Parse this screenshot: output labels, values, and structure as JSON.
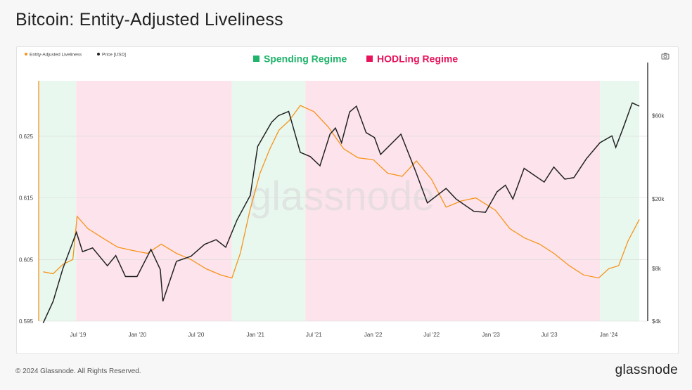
{
  "title": "Bitcoin: Entity-Adjusted Liveliness",
  "footer": {
    "copyright": "© 2024 Glassnode. All Rights Reserved.",
    "logo": "glassnode"
  },
  "watermark": "glassnode",
  "camera_icon": "camera-icon",
  "colors": {
    "spending": "#20b36b",
    "hodling": "#e8135a",
    "spending_fill": "#e8f8ef",
    "hodling_fill": "#fde4ec",
    "liveliness": "#f7931a",
    "price": "#222222"
  },
  "chart_data": {
    "type": "line",
    "x_axis": {
      "ticks": [
        "Jul '19",
        "Jan '20",
        "Jul '20",
        "Jan '21",
        "Jul '21",
        "Jan '22",
        "Jul '22",
        "Jan '23",
        "Jul '23",
        "Jan '24"
      ],
      "range": [
        "2019-03",
        "2024-05"
      ]
    },
    "y_left": {
      "ticks": [
        "0.595",
        "0.605",
        "0.615",
        "0.625"
      ],
      "range": [
        0.595,
        0.634
      ]
    },
    "y_right": {
      "scale": "log",
      "ticks": [
        "$4k",
        "$8k",
        "$20k",
        "$60k"
      ],
      "range": [
        4000,
        95000
      ]
    },
    "legend": [
      {
        "name": "Entity-Adjusted Liveliness",
        "axis": "left"
      },
      {
        "name": "Price [USD]",
        "axis": "right"
      }
    ],
    "regime_legend": [
      "Spending Regime",
      "HODLing Regime"
    ],
    "regimes": [
      {
        "type": "spending",
        "start": "2019-03-01",
        "end": "2019-06-25"
      },
      {
        "type": "hodling",
        "start": "2019-06-25",
        "end": "2020-10-20"
      },
      {
        "type": "spending",
        "start": "2020-10-20",
        "end": "2021-06-05"
      },
      {
        "type": "hodling",
        "start": "2021-06-05",
        "end": "2023-12-05"
      },
      {
        "type": "spending",
        "start": "2023-12-05",
        "end": "2024-04-05"
      }
    ],
    "series": [
      {
        "name": "Entity-Adjusted Liveliness",
        "x": [
          "2019-03-15",
          "2019-04-15",
          "2019-05-15",
          "2019-06-15",
          "2019-06-28",
          "2019-08-01",
          "2019-09-15",
          "2019-11-01",
          "2019-12-15",
          "2020-02-01",
          "2020-03-15",
          "2020-05-01",
          "2020-06-15",
          "2020-08-01",
          "2020-09-15",
          "2020-10-20",
          "2020-11-15",
          "2020-12-15",
          "2021-01-15",
          "2021-02-15",
          "2021-03-15",
          "2021-04-15",
          "2021-05-20",
          "2021-07-01",
          "2021-08-15",
          "2021-10-01",
          "2021-11-15",
          "2022-01-01",
          "2022-02-15",
          "2022-04-01",
          "2022-05-15",
          "2022-07-01",
          "2022-08-15",
          "2022-10-01",
          "2022-11-15",
          "2023-01-15",
          "2023-03-01",
          "2023-04-15",
          "2023-06-01",
          "2023-07-15",
          "2023-09-01",
          "2023-10-15",
          "2023-12-01",
          "2024-01-01",
          "2024-02-01",
          "2024-03-01",
          "2024-04-05"
        ],
        "values": [
          0.603,
          0.6027,
          0.6042,
          0.605,
          0.612,
          0.61,
          0.6085,
          0.607,
          0.6065,
          0.606,
          0.6075,
          0.606,
          0.605,
          0.6035,
          0.6025,
          0.602,
          0.606,
          0.613,
          0.619,
          0.623,
          0.626,
          0.6275,
          0.63,
          0.629,
          0.6265,
          0.623,
          0.6215,
          0.6212,
          0.619,
          0.6185,
          0.621,
          0.618,
          0.6135,
          0.6145,
          0.615,
          0.613,
          0.61,
          0.6085,
          0.6075,
          0.606,
          0.604,
          0.6025,
          0.602,
          0.6035,
          0.604,
          0.608,
          0.6115
        ]
      },
      {
        "name": "Price [USD]",
        "x": [
          "2019-03-15",
          "2019-04-15",
          "2019-05-15",
          "2019-06-26",
          "2019-07-15",
          "2019-08-15",
          "2019-09-30",
          "2019-10-26",
          "2019-11-25",
          "2019-12-31",
          "2020-02-12",
          "2020-03-12",
          "2020-03-20",
          "2020-05-01",
          "2020-06-15",
          "2020-07-27",
          "2020-09-01",
          "2020-10-01",
          "2020-11-05",
          "2020-12-16",
          "2021-01-08",
          "2021-02-20",
          "2021-03-13",
          "2021-04-14",
          "2021-05-20",
          "2021-06-20",
          "2021-07-20",
          "2021-08-20",
          "2021-09-06",
          "2021-09-25",
          "2021-10-20",
          "2021-11-10",
          "2021-12-10",
          "2022-01-05",
          "2022-01-24",
          "2022-03-28",
          "2022-05-12",
          "2022-06-18",
          "2022-08-15",
          "2022-09-15",
          "2022-11-09",
          "2022-12-15",
          "2023-01-20",
          "2023-02-15",
          "2023-03-10",
          "2023-04-14",
          "2023-06-15",
          "2023-07-15",
          "2023-08-18",
          "2023-09-15",
          "2023-10-24",
          "2023-12-05",
          "2024-01-11",
          "2024-01-23",
          "2024-02-15",
          "2024-03-14",
          "2024-04-05"
        ],
        "values": [
          3900,
          5200,
          8000,
          12900,
          10000,
          10500,
          8300,
          9500,
          7200,
          7200,
          10300,
          7900,
          5200,
          8800,
          9400,
          11000,
          11700,
          10600,
          15200,
          21000,
          40000,
          55000,
          60000,
          63500,
          37000,
          35000,
          31000,
          47000,
          51000,
          42000,
          63000,
          68000,
          48000,
          45000,
          36000,
          47000,
          29000,
          19000,
          23000,
          20000,
          17000,
          16800,
          22000,
          24000,
          20000,
          30000,
          25000,
          30500,
          26000,
          26500,
          34000,
          42000,
          46000,
          39500,
          51000,
          71000,
          68000
        ]
      }
    ]
  }
}
